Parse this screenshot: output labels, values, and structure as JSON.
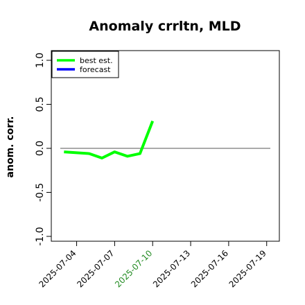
{
  "chart_data": {
    "type": "line",
    "title": "Anomaly crrltn, MLD",
    "xlabel": "",
    "ylabel": "anom. corr.",
    "ylim": [
      -1.0,
      1.0
    ],
    "yticks": [
      "-1.0",
      "-0.5",
      "0.0",
      "0.5",
      "1.0"
    ],
    "x_range": [
      "2025-07-02",
      "2025-07-20"
    ],
    "xticks": [
      {
        "date": "2025-07-04",
        "label": "2025-07-04",
        "color": "#000000"
      },
      {
        "date": "2025-07-07",
        "label": "2025-07-07",
        "color": "#000000"
      },
      {
        "date": "2025-07-10",
        "label": "2025-07-10",
        "color": "#228b22"
      },
      {
        "date": "2025-07-13",
        "label": "2025-07-13",
        "color": "#000000"
      },
      {
        "date": "2025-07-16",
        "label": "2025-07-16",
        "color": "#000000"
      },
      {
        "date": "2025-07-19",
        "label": "2025-07-19",
        "color": "#000000"
      }
    ],
    "reference_line": 0.0,
    "series": [
      {
        "name": "best est.",
        "color": "#00ff00",
        "x": [
          "2025-07-03",
          "2025-07-05",
          "2025-07-06",
          "2025-07-07",
          "2025-07-08",
          "2025-07-09",
          "2025-07-10"
        ],
        "y": [
          -0.04,
          -0.06,
          -0.11,
          -0.04,
          -0.09,
          -0.06,
          0.31
        ]
      },
      {
        "name": "forecast",
        "color": "#0000ff",
        "x": [],
        "y": []
      }
    ],
    "legend": {
      "position": "top-left",
      "entries": [
        {
          "label": "best est.",
          "color": "#00ff00"
        },
        {
          "label": "forecast",
          "color": "#0000ff"
        }
      ]
    },
    "grid": false
  }
}
